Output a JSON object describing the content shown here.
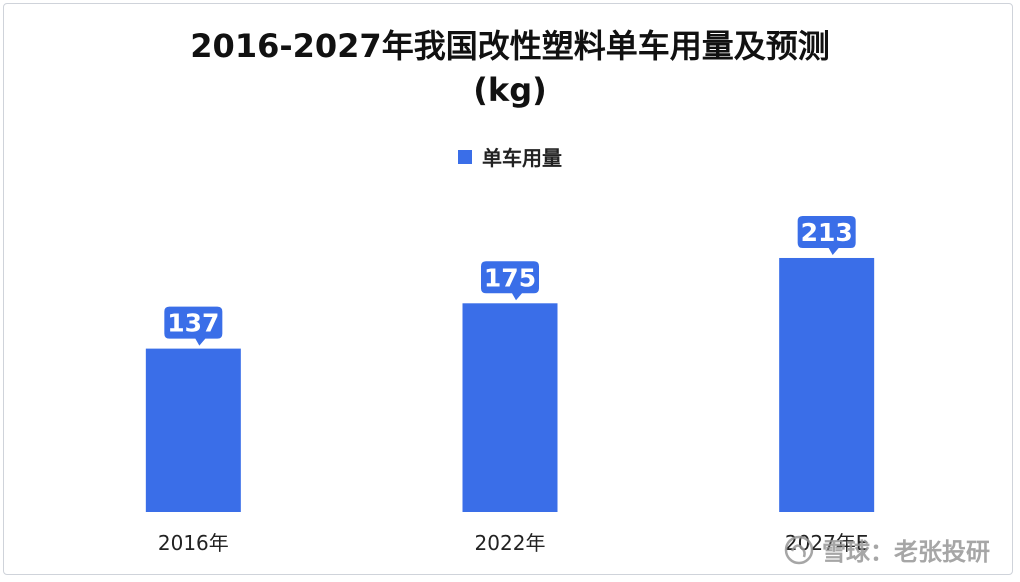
{
  "chart_data": {
    "type": "bar",
    "title": "2016-2027年我国改性塑料单车用量及预测\n(kg)",
    "categories": [
      "2016年",
      "2022年",
      "2027年E"
    ],
    "series": [
      {
        "name": "单车用量",
        "values": [
          137,
          175,
          213
        ]
      }
    ],
    "ylim": [
      0,
      270
    ],
    "grid": false,
    "legend_position": "top-center",
    "bar_color": "#3a6ee8",
    "label_color": "#3a6ee8"
  },
  "watermark": "雪球：老张投研"
}
